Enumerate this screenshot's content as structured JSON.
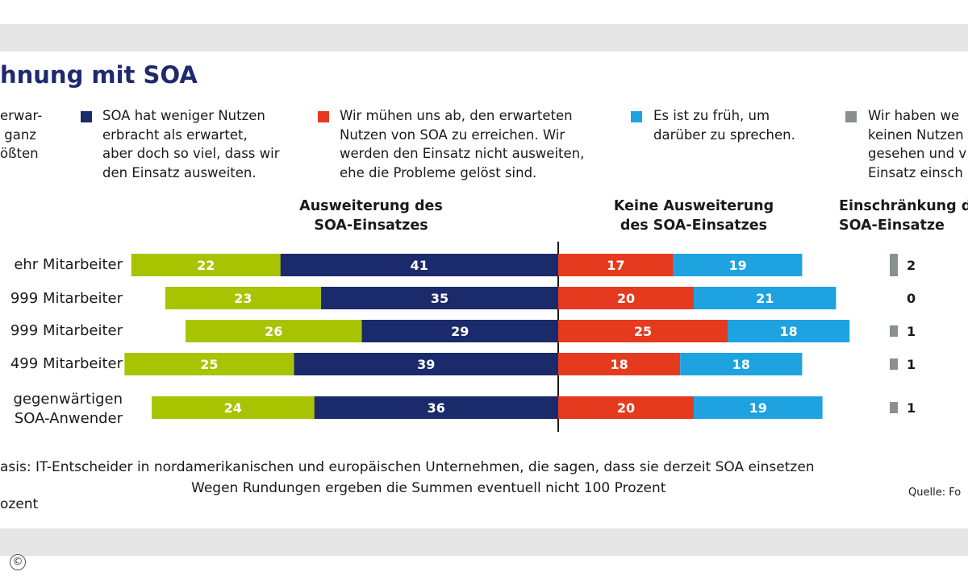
{
  "title": "hnung mit SOA",
  "legend": [
    {
      "text": "erwar-\n ganz\nößten\n",
      "color": "#a8c300"
    },
    {
      "text": "SOA hat weniger Nutzen\nerbracht als erwartet,\naber doch so viel, dass wir\nden Einsatz ausweiten.",
      "color": "#1b2a6b"
    },
    {
      "text": "Wir mühen uns ab, den erwarteten\nNutzen von SOA zu erreichen. Wir\nwerden den Einsatz nicht ausweiten,\nehe die Probleme gelöst sind.",
      "color": "#e63a1f"
    },
    {
      "text": "Es ist zu früh, um\ndarüber zu sprechen.",
      "color": "#1ea3e0"
    },
    {
      "text": "Wir haben we\nkeinen Nutzen\ngesehen und v\nEinsatz einsch",
      "color": "#8a9090"
    }
  ],
  "groups": {
    "left": "Ausweiterung des\nSOA-Einsatzes",
    "middle": "Keine Ausweiterung\ndes SOA-Einsatzes",
    "right": "Einschränkung d\nSOA-Einsatze"
  },
  "footer": {
    "basis": "asis: IT-Entscheider in nordamerikanischen und europäischen Unternehmen, die sagen, dass sie derzeit SOA einsetzen",
    "rounding": "Wegen Rundungen ergeben die Summen eventuell nicht 100 Prozent",
    "unit": "ozent",
    "source": "Quelle: Fo"
  },
  "chart_data": {
    "type": "bar",
    "orientation": "horizontal-diverging",
    "categories": [
      "ehr Mitarbeiter",
      "999 Mitarbeiter",
      "999 Mitarbeiter",
      "499 Mitarbeiter",
      "gegenwärtigen\nSOA-Anwender"
    ],
    "series": [
      {
        "name": "erwar- ganz ößten",
        "side": "left",
        "color": "#a8c300",
        "values": [
          22,
          23,
          26,
          25,
          24
        ]
      },
      {
        "name": "SOA hat weniger Nutzen erbracht als erwartet",
        "side": "left",
        "color": "#1b2a6b",
        "values": [
          41,
          35,
          29,
          39,
          36
        ]
      },
      {
        "name": "Wir mühen uns ab",
        "side": "right",
        "color": "#e63a1f",
        "values": [
          17,
          20,
          25,
          18,
          20
        ]
      },
      {
        "name": "Es ist zu früh",
        "side": "right",
        "color": "#1ea3e0",
        "values": [
          19,
          21,
          18,
          18,
          19
        ]
      },
      {
        "name": "Wir haben keinen Nutzen gesehen",
        "side": "separate",
        "color": "#8a9090",
        "values": [
          2,
          0,
          1,
          1,
          1
        ]
      }
    ],
    "unit": "Prozent"
  }
}
